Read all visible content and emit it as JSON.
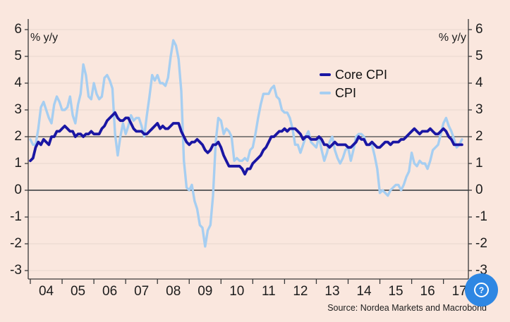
{
  "page": {
    "background": "#fae7de"
  },
  "footer": {
    "source": "Source: Nordea Markets and Macrobond"
  },
  "help_button": {
    "glyph": "?",
    "color": "#2e87e3"
  },
  "chart_data": {
    "type": "line",
    "title": "",
    "unit_label_left": "% y/y",
    "unit_label_right": "% y/y",
    "frequency": "monthly",
    "x_start": "2004-01",
    "x_end": "2017-08",
    "x_tick_labels": [
      "04",
      "05",
      "06",
      "07",
      "08",
      "09",
      "10",
      "11",
      "12",
      "13",
      "14",
      "15",
      "16",
      "17"
    ],
    "y_ticks": [
      6,
      5,
      4,
      3,
      2,
      1,
      0,
      -1,
      -2,
      -3
    ],
    "ylim": [
      -3,
      6
    ],
    "grid": true,
    "reference_lines": [
      2,
      0
    ],
    "legend_position": "top-right-inside",
    "style": {
      "grid": "#e8d7cf",
      "grid_strong": "#616161",
      "axis": "#3a3a3a",
      "text": "#1c1c1c"
    },
    "series": [
      {
        "name": "Core CPI",
        "color": "#1a16a3",
        "values": [
          1.1,
          1.2,
          1.6,
          1.8,
          1.7,
          1.9,
          1.8,
          1.7,
          2.0,
          2.0,
          2.2,
          2.2,
          2.3,
          2.4,
          2.3,
          2.2,
          2.2,
          2.0,
          2.1,
          2.1,
          2.0,
          2.1,
          2.1,
          2.2,
          2.1,
          2.1,
          2.1,
          2.3,
          2.4,
          2.6,
          2.7,
          2.8,
          2.9,
          2.7,
          2.6,
          2.6,
          2.7,
          2.7,
          2.5,
          2.3,
          2.2,
          2.2,
          2.2,
          2.1,
          2.1,
          2.2,
          2.3,
          2.4,
          2.5,
          2.3,
          2.4,
          2.3,
          2.3,
          2.4,
          2.5,
          2.5,
          2.5,
          2.2,
          2.0,
          1.8,
          1.7,
          1.8,
          1.8,
          1.9,
          1.8,
          1.7,
          1.5,
          1.4,
          1.5,
          1.7,
          1.7,
          1.8,
          1.6,
          1.3,
          1.1,
          0.9,
          0.9,
          0.9,
          0.9,
          0.9,
          0.8,
          0.6,
          0.8,
          0.8,
          1.0,
          1.1,
          1.2,
          1.3,
          1.5,
          1.6,
          1.8,
          2.0,
          2.0,
          2.1,
          2.2,
          2.2,
          2.3,
          2.2,
          2.3,
          2.3,
          2.3,
          2.2,
          2.1,
          1.9,
          2.0,
          2.0,
          1.9,
          1.9,
          1.9,
          2.0,
          1.9,
          1.7,
          1.7,
          1.6,
          1.7,
          1.8,
          1.7,
          1.7,
          1.7,
          1.7,
          1.6,
          1.6,
          1.7,
          1.8,
          2.0,
          1.9,
          1.9,
          1.7,
          1.7,
          1.8,
          1.7,
          1.6,
          1.6,
          1.7,
          1.8,
          1.8,
          1.7,
          1.8,
          1.8,
          1.8,
          1.9,
          1.9,
          2.0,
          2.1,
          2.2,
          2.3,
          2.2,
          2.1,
          2.2,
          2.2,
          2.2,
          2.3,
          2.2,
          2.1,
          2.1,
          2.2,
          2.3,
          2.2,
          2.0,
          1.9,
          1.7,
          1.7,
          1.7,
          1.7
        ]
      },
      {
        "name": "CPI",
        "color": "#a6cef1",
        "values": [
          1.9,
          1.7,
          1.7,
          2.3,
          3.1,
          3.3,
          3.0,
          2.7,
          2.5,
          3.2,
          3.5,
          3.3,
          3.0,
          3.0,
          3.1,
          3.5,
          2.8,
          2.5,
          3.2,
          3.6,
          4.7,
          4.3,
          3.5,
          3.4,
          4.0,
          3.6,
          3.4,
          3.5,
          4.2,
          4.3,
          4.1,
          3.8,
          2.1,
          1.3,
          2.0,
          2.5,
          2.1,
          2.4,
          2.8,
          2.6,
          2.7,
          2.7,
          2.4,
          2.0,
          2.8,
          3.5,
          4.3,
          4.1,
          4.3,
          4.0,
          4.0,
          3.9,
          4.2,
          5.0,
          5.6,
          5.4,
          4.9,
          3.7,
          1.1,
          0.1,
          0.0,
          0.2,
          -0.4,
          -0.7,
          -1.3,
          -1.4,
          -2.1,
          -1.5,
          -1.3,
          -0.2,
          1.8,
          2.7,
          2.6,
          2.1,
          2.3,
          2.2,
          2.0,
          1.1,
          1.2,
          1.1,
          1.1,
          1.2,
          1.1,
          1.5,
          1.6,
          2.1,
          2.7,
          3.2,
          3.6,
          3.6,
          3.6,
          3.8,
          3.9,
          3.5,
          3.4,
          3.0,
          2.9,
          2.9,
          2.7,
          2.3,
          1.7,
          1.7,
          1.4,
          1.7,
          2.0,
          2.2,
          1.8,
          1.7,
          1.6,
          2.0,
          1.5,
          1.1,
          1.4,
          1.8,
          2.0,
          1.5,
          1.2,
          1.0,
          1.2,
          1.5,
          1.6,
          1.1,
          1.5,
          2.0,
          2.1,
          2.1,
          2.0,
          1.7,
          1.7,
          1.7,
          1.3,
          0.8,
          -0.1,
          0.0,
          -0.1,
          -0.2,
          0.0,
          0.1,
          0.2,
          0.2,
          0.0,
          0.2,
          0.5,
          0.7,
          1.4,
          1.0,
          0.9,
          1.1,
          1.0,
          1.0,
          0.8,
          1.1,
          1.5,
          1.6,
          1.7,
          2.1,
          2.5,
          2.7,
          2.4,
          2.2,
          1.9,
          1.6,
          1.7,
          1.9
        ]
      }
    ]
  }
}
